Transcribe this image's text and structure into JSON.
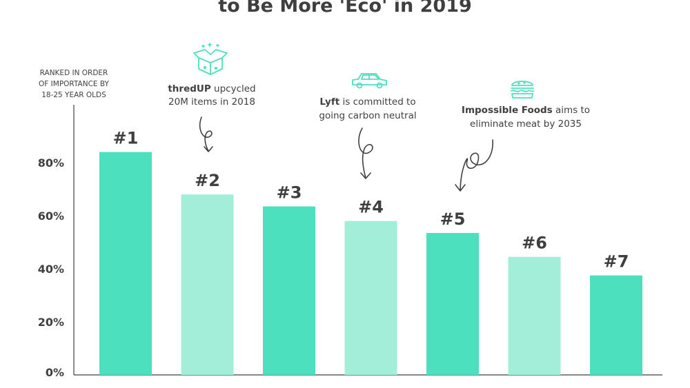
{
  "chart_data": {
    "type": "bar",
    "title": "to Be More 'Eco' in 2019",
    "ylabel_lines": [
      "RANKED IN ORDER",
      "OF IMPORTANCE BY",
      "18-25 YEAR OLDS"
    ],
    "ylim": [
      0,
      100
    ],
    "yticks": [
      0,
      20,
      40,
      60,
      80
    ],
    "ytick_labels": [
      "0%",
      "20%",
      "40%",
      "60%",
      "80%"
    ],
    "categories": [
      "#1",
      "#2",
      "#3",
      "#4",
      "#5",
      "#6",
      "#7"
    ],
    "values": [
      84,
      68,
      63.5,
      58,
      53.5,
      44.5,
      37.5
    ],
    "bar_colors": [
      "#4de0be",
      "#a3eed8",
      "#4de0be",
      "#a3eed8",
      "#4de0be",
      "#a3eed8",
      "#4de0be"
    ],
    "grid": false,
    "annotations": [
      {
        "bar": "#2",
        "icon": "box-icon",
        "bold": "thredUP",
        "rest": " upcycled",
        "line2": "20M items in 2018"
      },
      {
        "bar": "#4",
        "icon": "car-icon",
        "bold": "Lyft",
        "rest": " is committed to",
        "line2": "going carbon neutral"
      },
      {
        "bar": "#5",
        "icon": "burger-icon",
        "bold": "Impossible Foods",
        "rest": " aims to",
        "line2": "eliminate meat by 2035"
      }
    ]
  }
}
